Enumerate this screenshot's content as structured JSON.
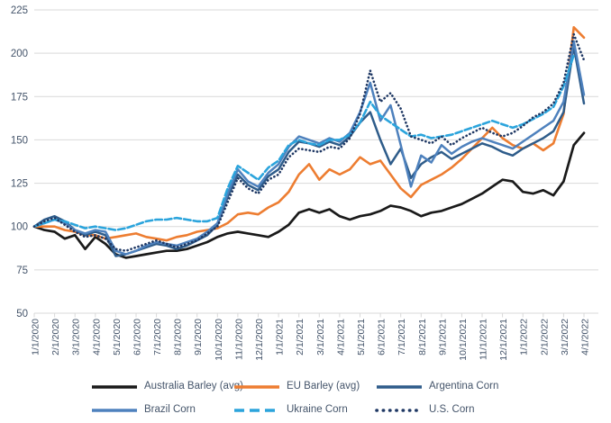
{
  "chart_data": {
    "type": "line",
    "title": "",
    "xlabel": "",
    "ylabel": "",
    "ylim": [
      50,
      225
    ],
    "y_ticks": [
      225,
      200,
      175,
      150,
      125,
      100,
      75,
      50
    ],
    "x_months": 27,
    "sample_step_months": 0.5,
    "grid": "horizontal",
    "legend_position": "bottom",
    "x_tick_labels": [
      "1/1/2020",
      "2/1/2020",
      "3/1/2020",
      "4/1/2020",
      "5/1/2020",
      "6/1/2020",
      "7/1/2020",
      "8/1/2020",
      "9/1/2020",
      "10/1/2020",
      "11/1/2020",
      "12/1/2020",
      "1/1/2021",
      "2/1/2021",
      "3/1/2021",
      "4/1/2021",
      "5/1/2021",
      "6/1/2021",
      "7/1/2021",
      "8/1/2021",
      "9/1/2021",
      "10/1/2021",
      "11/1/2021",
      "12/1/2021",
      "1/1/2022",
      "2/1/2022",
      "3/1/2022",
      "4/1/2022"
    ],
    "colors": {
      "grid": "#D9D9D9",
      "axis": "#D9D9D9",
      "axis_text": "#44546A",
      "legend_text": "#44546A",
      "background": "#FFFFFF"
    },
    "series": [
      {
        "name": "Australia Barley (avg)",
        "color": "#1A1A1A",
        "style": "solid",
        "width": 2.7,
        "values": [
          100,
          98,
          97,
          93,
          95,
          87,
          94,
          90,
          84,
          82,
          83,
          84,
          85,
          86,
          86,
          87,
          89,
          91,
          94,
          96,
          97,
          96,
          95,
          94,
          97,
          101,
          108,
          110,
          108,
          110,
          106,
          104,
          106,
          107,
          109,
          112,
          111,
          109,
          106,
          108,
          109,
          111,
          113,
          116,
          119,
          123,
          127,
          126,
          120,
          119,
          121,
          118,
          126,
          147,
          154
        ]
      },
      {
        "name": "EU Barley (avg)",
        "color": "#ED7D31",
        "style": "solid",
        "width": 2.6,
        "values": [
          100,
          100,
          100,
          98,
          97,
          95,
          95,
          93,
          94,
          95,
          96,
          94,
          93,
          92,
          94,
          95,
          97,
          98,
          99,
          102,
          107,
          108,
          107,
          111,
          114,
          120,
          130,
          136,
          127,
          133,
          130,
          133,
          140,
          136,
          138,
          130,
          122,
          117,
          124,
          127,
          130,
          134,
          139,
          145,
          151,
          157,
          151,
          147,
          145,
          148,
          144,
          148,
          165,
          215,
          209
        ]
      },
      {
        "name": "Argentina Corn",
        "color": "#2E5C8A",
        "style": "solid",
        "width": 2.5,
        "values": [
          100,
          104,
          106,
          103,
          98,
          95,
          97,
          95,
          83,
          84,
          86,
          88,
          90,
          89,
          87,
          89,
          92,
          95,
          101,
          117,
          130,
          124,
          121,
          129,
          133,
          143,
          149,
          148,
          146,
          149,
          147,
          152,
          160,
          166,
          150,
          136,
          145,
          128,
          136,
          140,
          143,
          139,
          142,
          145,
          148,
          146,
          143,
          141,
          145,
          148,
          151,
          155,
          166,
          204,
          171
        ]
      },
      {
        "name": "Brazil Corn",
        "color": "#4E81BD",
        "style": "solid",
        "width": 2.5,
        "values": [
          100,
          102,
          104,
          102,
          98,
          96,
          98,
          97,
          86,
          84,
          86,
          89,
          91,
          90,
          89,
          91,
          93,
          97,
          102,
          119,
          133,
          126,
          123,
          131,
          136,
          146,
          152,
          150,
          148,
          151,
          149,
          154,
          166,
          183,
          161,
          170,
          147,
          123,
          141,
          137,
          147,
          142,
          146,
          149,
          151,
          149,
          147,
          145,
          149,
          153,
          157,
          161,
          172,
          207,
          176
        ]
      },
      {
        "name": "Ukraine Corn",
        "color": "#2BA4DC",
        "style": "dashed",
        "width": 2.6,
        "values": [
          100,
          102,
          104,
          103,
          101,
          99,
          100,
          99,
          98,
          99,
          101,
          103,
          104,
          104,
          105,
          104,
          103,
          103,
          105,
          122,
          135,
          131,
          127,
          134,
          138,
          147,
          150,
          148,
          147,
          150,
          150,
          153,
          160,
          172,
          164,
          160,
          156,
          152,
          153,
          151,
          152,
          153,
          155,
          157,
          159,
          161,
          159,
          157,
          159,
          162,
          165,
          169,
          181,
          199,
          null
        ]
      },
      {
        "name": "U.S. Corn",
        "color": "#1F3864",
        "style": "dotted",
        "width": 2.6,
        "values": [
          100,
          103,
          105,
          101,
          97,
          94,
          95,
          93,
          87,
          86,
          88,
          90,
          92,
          90,
          88,
          90,
          92,
          96,
          100,
          114,
          128,
          122,
          119,
          127,
          130,
          140,
          145,
          144,
          143,
          146,
          145,
          151,
          165,
          190,
          172,
          177,
          168,
          152,
          150,
          148,
          152,
          147,
          151,
          154,
          157,
          154,
          152,
          154,
          158,
          163,
          166,
          171,
          183,
          211,
          196
        ]
      }
    ]
  }
}
